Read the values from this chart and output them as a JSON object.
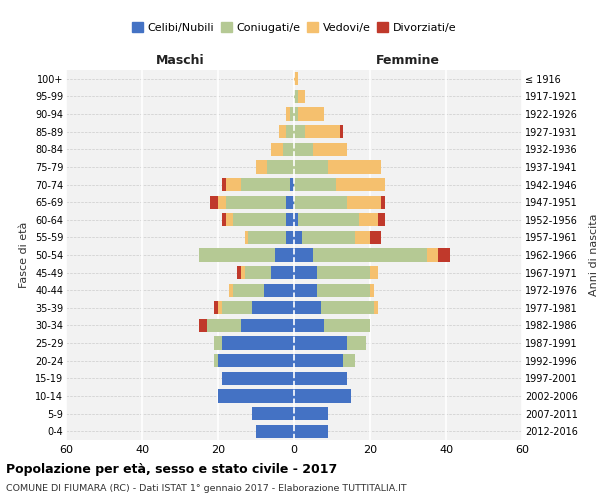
{
  "age_groups": [
    "0-4",
    "5-9",
    "10-14",
    "15-19",
    "20-24",
    "25-29",
    "30-34",
    "35-39",
    "40-44",
    "45-49",
    "50-54",
    "55-59",
    "60-64",
    "65-69",
    "70-74",
    "75-79",
    "80-84",
    "85-89",
    "90-94",
    "95-99",
    "100+"
  ],
  "birth_years": [
    "2012-2016",
    "2007-2011",
    "2002-2006",
    "1997-2001",
    "1992-1996",
    "1987-1991",
    "1982-1986",
    "1977-1981",
    "1972-1976",
    "1967-1971",
    "1962-1966",
    "1957-1961",
    "1952-1956",
    "1947-1951",
    "1942-1946",
    "1937-1941",
    "1932-1936",
    "1927-1931",
    "1922-1926",
    "1917-1921",
    "≤ 1916"
  ],
  "maschi": {
    "celibi": [
      10,
      11,
      20,
      19,
      20,
      19,
      14,
      11,
      8,
      6,
      5,
      2,
      2,
      2,
      1,
      0,
      0,
      0,
      0,
      0,
      0
    ],
    "coniugati": [
      0,
      0,
      0,
      0,
      1,
      2,
      9,
      8,
      8,
      7,
      20,
      10,
      14,
      16,
      13,
      7,
      3,
      2,
      1,
      0,
      0
    ],
    "vedovi": [
      0,
      0,
      0,
      0,
      0,
      0,
      0,
      1,
      1,
      1,
      0,
      1,
      2,
      2,
      4,
      3,
      3,
      2,
      1,
      0,
      0
    ],
    "divorziati": [
      0,
      0,
      0,
      0,
      0,
      0,
      2,
      1,
      0,
      1,
      0,
      0,
      1,
      2,
      1,
      0,
      0,
      0,
      0,
      0,
      0
    ]
  },
  "femmine": {
    "nubili": [
      9,
      9,
      15,
      14,
      13,
      14,
      8,
      7,
      6,
      6,
      5,
      2,
      1,
      0,
      0,
      0,
      0,
      0,
      0,
      0,
      0
    ],
    "coniugate": [
      0,
      0,
      0,
      0,
      3,
      5,
      12,
      14,
      14,
      14,
      30,
      14,
      16,
      14,
      11,
      9,
      5,
      3,
      1,
      1,
      0
    ],
    "vedove": [
      0,
      0,
      0,
      0,
      0,
      0,
      0,
      1,
      1,
      2,
      3,
      4,
      5,
      9,
      13,
      14,
      9,
      9,
      7,
      2,
      1
    ],
    "divorziate": [
      0,
      0,
      0,
      0,
      0,
      0,
      0,
      0,
      0,
      0,
      3,
      3,
      2,
      1,
      0,
      0,
      0,
      1,
      0,
      0,
      0
    ]
  },
  "colors": {
    "celibi": "#4472c4",
    "coniugati": "#b5c994",
    "vedovi": "#f5c06e",
    "divorziati": "#c0392b"
  },
  "xlim": 60,
  "title": "Popolazione per età, sesso e stato civile - 2017",
  "subtitle": "COMUNE DI FIUMARA (RC) - Dati ISTAT 1° gennaio 2017 - Elaborazione TUTTITALIA.IT",
  "ylabel_left": "Fasce di età",
  "ylabel_right": "Anni di nascita",
  "xlabel_left": "Maschi",
  "xlabel_right": "Femmine",
  "bg_color": "#f2f2f2",
  "grid_color": "#ffffff",
  "grid_y_color": "#cccccc"
}
